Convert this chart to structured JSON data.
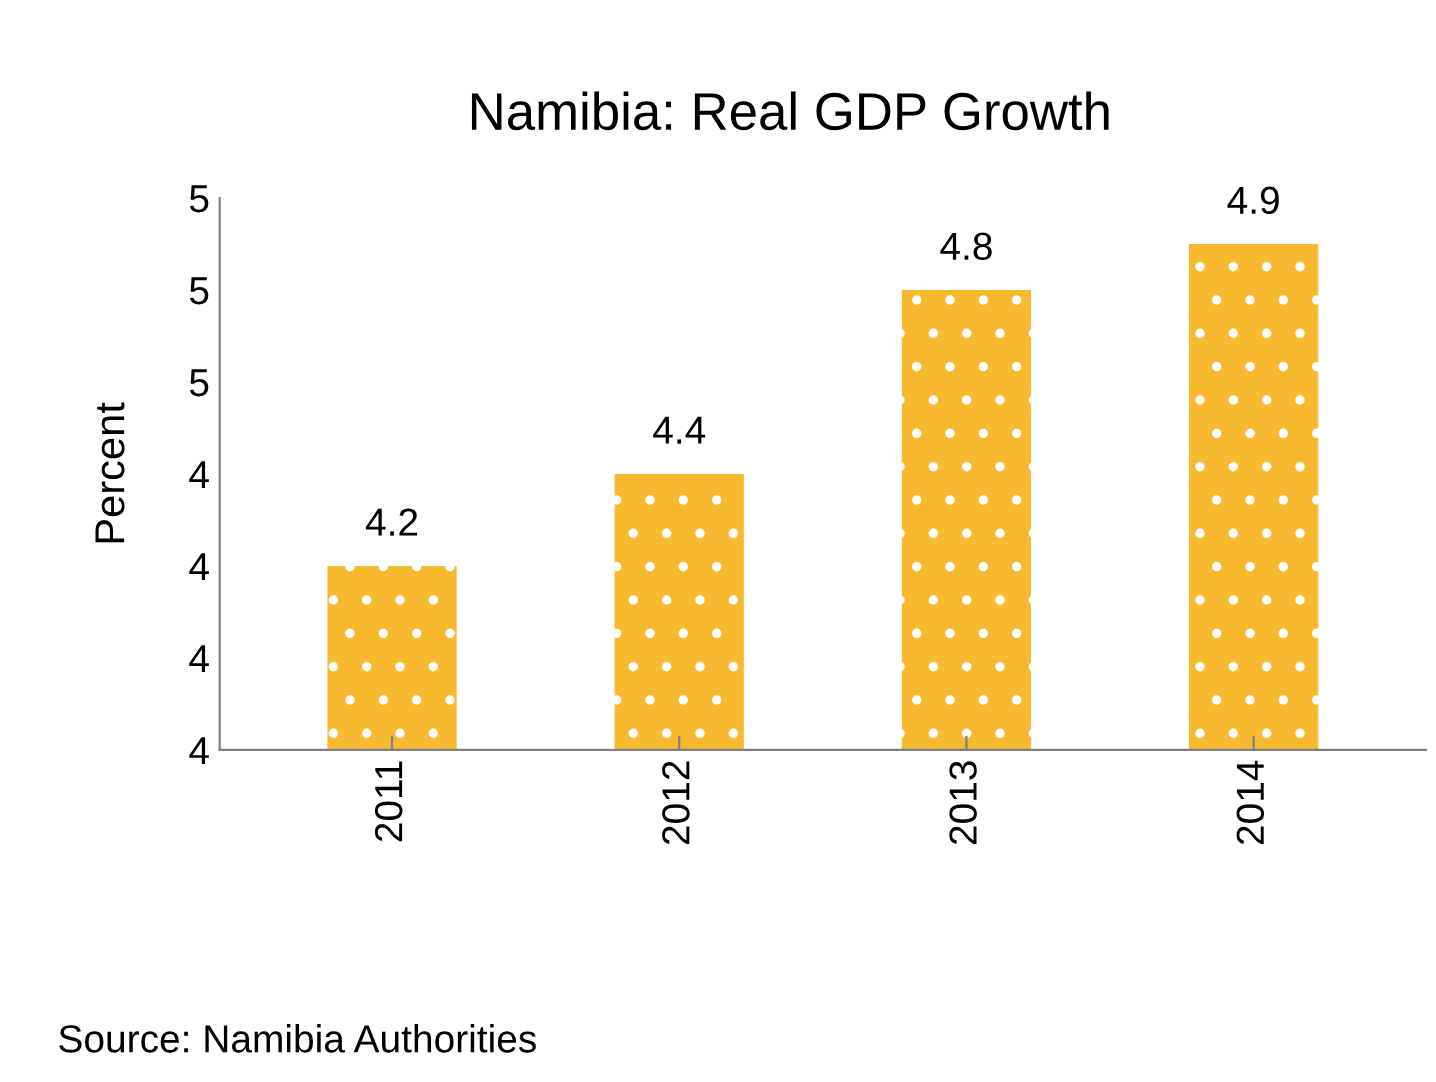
{
  "chart_data": {
    "type": "bar",
    "title": "Namibia: Real GDP Growth",
    "ylabel": "Percent",
    "categories": [
      "2011",
      "2012",
      "2013",
      "2014"
    ],
    "values": [
      4.2,
      4.4,
      4.8,
      4.9
    ],
    "color": "#f6b92f",
    "ylim": [
      3.8,
      5.0
    ],
    "yticks": [
      {
        "value": 3.8,
        "label": "4"
      },
      {
        "value": 4.0,
        "label": "4"
      },
      {
        "value": 4.2,
        "label": "4"
      },
      {
        "value": 4.4,
        "label": "4"
      },
      {
        "value": 4.6,
        "label": "5"
      },
      {
        "value": 4.8,
        "label": "5"
      },
      {
        "value": 5.0,
        "label": "5"
      }
    ],
    "data_labels": true,
    "grid": false,
    "legend": false,
    "annotations": [
      "Source: Namibia Authorities"
    ]
  }
}
